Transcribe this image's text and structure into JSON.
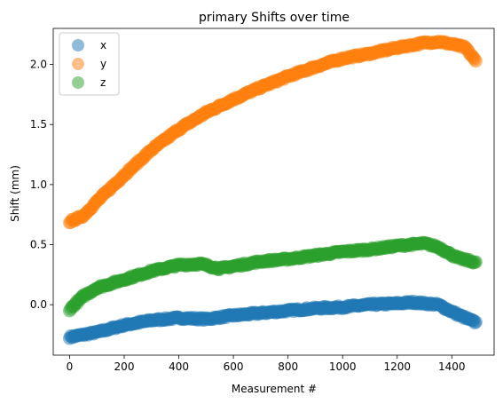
{
  "chart_data": {
    "type": "scatter",
    "title": "primary Shifts over time",
    "xlabel": "Measurement #",
    "ylabel": "Shift (mm)",
    "xlim": [
      -60,
      1555
    ],
    "ylim": [
      -0.42,
      2.3
    ],
    "xticks": [
      0,
      200,
      400,
      600,
      800,
      1000,
      1200,
      1400
    ],
    "yticks": [
      0.0,
      0.5,
      1.0,
      1.5,
      2.0
    ],
    "ytick_labels": [
      "0.0",
      "0.5",
      "1.0",
      "1.5",
      "2.0"
    ],
    "grid": false,
    "legend_position": "top-left",
    "series": [
      {
        "name": "x",
        "color": "#1f77b4",
        "keypoints": [
          [
            0,
            -0.27
          ],
          [
            50,
            -0.25
          ],
          [
            100,
            -0.23
          ],
          [
            200,
            -0.17
          ],
          [
            300,
            -0.13
          ],
          [
            400,
            -0.11
          ],
          [
            500,
            -0.12
          ],
          [
            600,
            -0.09
          ],
          [
            700,
            -0.07
          ],
          [
            800,
            -0.05
          ],
          [
            900,
            -0.03
          ],
          [
            1000,
            -0.02
          ],
          [
            1100,
            0.0
          ],
          [
            1200,
            0.01
          ],
          [
            1260,
            0.02
          ],
          [
            1350,
            0.0
          ],
          [
            1420,
            -0.08
          ],
          [
            1490,
            -0.15
          ]
        ]
      },
      {
        "name": "y",
        "color": "#ff7f0e",
        "keypoints": [
          [
            0,
            0.69
          ],
          [
            50,
            0.74
          ],
          [
            100,
            0.86
          ],
          [
            200,
            1.08
          ],
          [
            300,
            1.29
          ],
          [
            400,
            1.46
          ],
          [
            500,
            1.6
          ],
          [
            600,
            1.71
          ],
          [
            700,
            1.81
          ],
          [
            800,
            1.9
          ],
          [
            900,
            1.98
          ],
          [
            1000,
            2.05
          ],
          [
            1100,
            2.09
          ],
          [
            1200,
            2.14
          ],
          [
            1300,
            2.18
          ],
          [
            1350,
            2.19
          ],
          [
            1400,
            2.17
          ],
          [
            1450,
            2.14
          ],
          [
            1490,
            2.02
          ]
        ]
      },
      {
        "name": "z",
        "color": "#2ca02c",
        "keypoints": [
          [
            0,
            -0.04
          ],
          [
            50,
            0.07
          ],
          [
            100,
            0.14
          ],
          [
            200,
            0.21
          ],
          [
            300,
            0.28
          ],
          [
            400,
            0.33
          ],
          [
            480,
            0.34
          ],
          [
            550,
            0.3
          ],
          [
            600,
            0.32
          ],
          [
            700,
            0.36
          ],
          [
            800,
            0.38
          ],
          [
            900,
            0.41
          ],
          [
            1000,
            0.44
          ],
          [
            1100,
            0.46
          ],
          [
            1200,
            0.49
          ],
          [
            1300,
            0.51
          ],
          [
            1350,
            0.48
          ],
          [
            1420,
            0.39
          ],
          [
            1490,
            0.35
          ]
        ]
      }
    ]
  }
}
